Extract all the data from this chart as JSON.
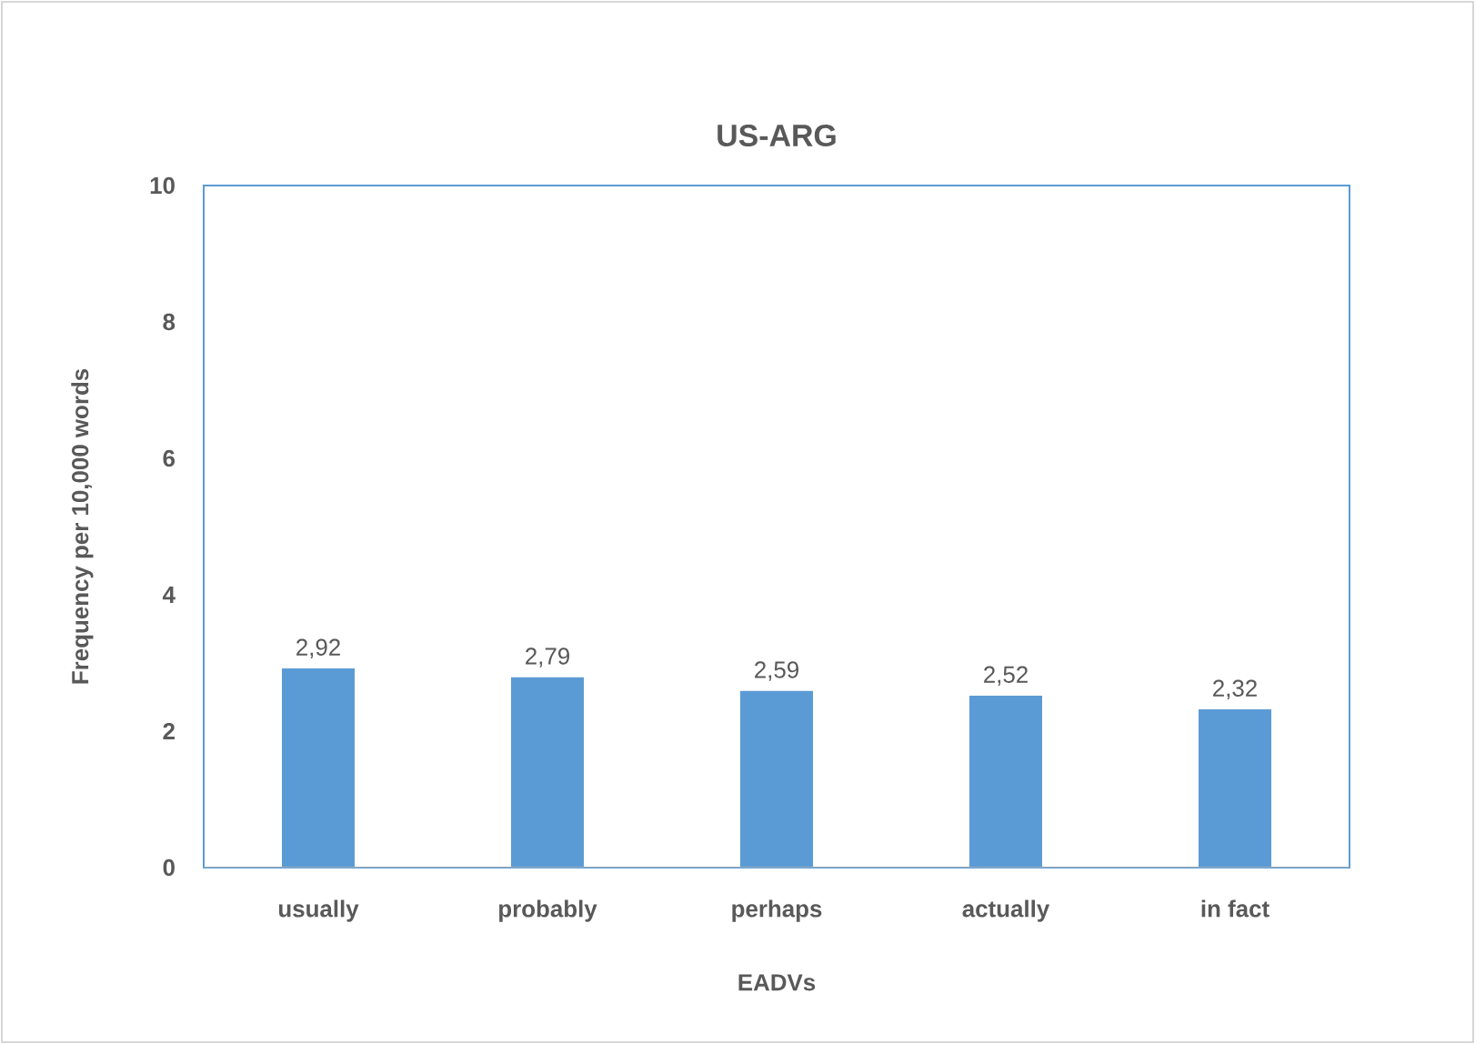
{
  "chart_data": {
    "type": "bar",
    "title": "US-ARG",
    "xlabel": "EADVs",
    "ylabel": "Frequency per 10,000 words",
    "categories": [
      "usually",
      "probably",
      "perhaps",
      "actually",
      "in fact"
    ],
    "values": [
      2.92,
      2.79,
      2.59,
      2.52,
      2.32
    ],
    "value_labels": [
      "2,92",
      "2,79",
      "2,59",
      "2,52",
      "2,32"
    ],
    "color": "#5b9bd5",
    "ylim": [
      0,
      10
    ],
    "yticks": [
      0,
      2,
      4,
      6,
      8,
      10
    ]
  }
}
